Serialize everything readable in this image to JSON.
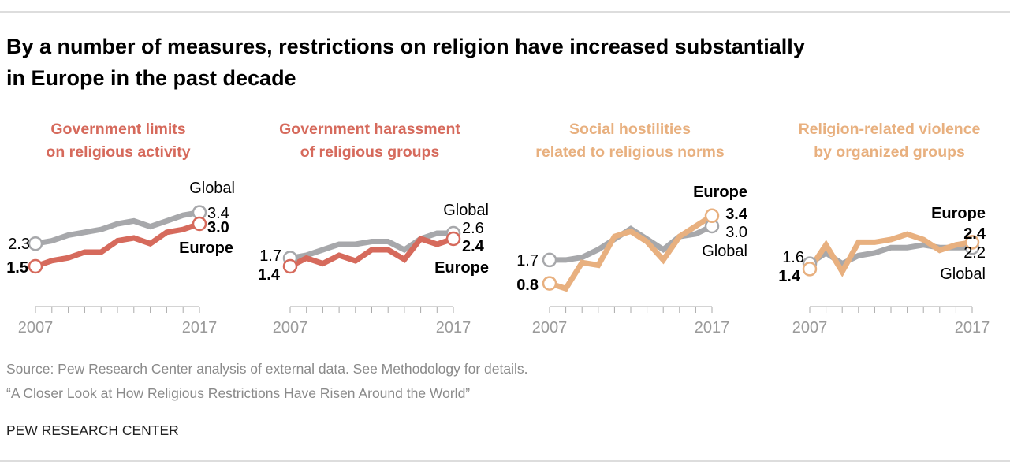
{
  "title_line1": "By a number of measures, restrictions on religion have increased substantially",
  "title_line2": "in Europe in the past decade",
  "source_line1": "Source: Pew Research Center analysis of external data. See Methodology for details.",
  "source_line2": "“A Closer Look at How Religious Restrictions Have Risen Around the World”",
  "brand": "PEW RESEARCH CENTER",
  "colors": {
    "global": "#a7a8ab",
    "red": "#d66a5c",
    "orange": "#e8b07f"
  },
  "chart_data": [
    {
      "type": "line",
      "title_lines": [
        "Government limits",
        "on religious activity"
      ],
      "title_color": "#d66a5c",
      "x": [
        2007,
        2008,
        2009,
        2010,
        2011,
        2012,
        2013,
        2014,
        2015,
        2016,
        2017
      ],
      "x_tick_labels": [
        "2007",
        "2017"
      ],
      "series": [
        {
          "name": "Global",
          "color": "#a7a8ab",
          "values": [
            2.3,
            2.4,
            2.6,
            2.7,
            2.8,
            3.0,
            3.1,
            2.9,
            3.1,
            3.3,
            3.4
          ],
          "start_label": "2.3",
          "end_label": "3.4"
        },
        {
          "name": "Europe",
          "color": "#d66a5c",
          "values": [
            1.5,
            1.7,
            1.8,
            2.0,
            2.0,
            2.4,
            2.5,
            2.3,
            2.7,
            2.8,
            3.0
          ],
          "start_label": "1.5",
          "end_label": "3.0"
        }
      ]
    },
    {
      "type": "line",
      "title_lines": [
        "Government harassment",
        "of religious groups"
      ],
      "title_color": "#d66a5c",
      "x": [
        2007,
        2008,
        2009,
        2010,
        2011,
        2012,
        2013,
        2014,
        2015,
        2016,
        2017
      ],
      "x_tick_labels": [
        "2007",
        "2017"
      ],
      "series": [
        {
          "name": "Global",
          "color": "#a7a8ab",
          "values": [
            1.7,
            1.8,
            2.0,
            2.2,
            2.2,
            2.3,
            2.3,
            2.0,
            2.4,
            2.6,
            2.6
          ],
          "start_label": "1.7",
          "end_label": "2.6"
        },
        {
          "name": "Europe",
          "color": "#d66a5c",
          "values": [
            1.4,
            1.7,
            1.5,
            1.8,
            1.6,
            2.0,
            2.0,
            1.65,
            2.4,
            2.2,
            2.4
          ],
          "start_label": "1.4",
          "end_label": "2.4"
        }
      ]
    },
    {
      "type": "line",
      "title_lines": [
        "Social hostilities",
        "related to religious norms"
      ],
      "title_color": "#e8b07f",
      "x": [
        2007,
        2008,
        2009,
        2010,
        2011,
        2012,
        2013,
        2014,
        2015,
        2016,
        2017
      ],
      "x_tick_labels": [
        "2007",
        "2017"
      ],
      "series": [
        {
          "name": "Global",
          "color": "#a7a8ab",
          "values": [
            1.7,
            1.7,
            1.8,
            2.1,
            2.5,
            2.9,
            2.5,
            2.1,
            2.6,
            2.7,
            3.0
          ],
          "start_label": "1.7",
          "end_label": "3.0"
        },
        {
          "name": "Europe",
          "color": "#e8b07f",
          "values": [
            0.8,
            0.6,
            1.6,
            1.5,
            2.6,
            2.8,
            2.4,
            1.7,
            2.6,
            3.0,
            3.4
          ],
          "start_label": "0.8",
          "end_label": "3.4"
        }
      ]
    },
    {
      "type": "line",
      "title_lines": [
        "Religion-related violence",
        "by organized groups"
      ],
      "title_color": "#e8b07f",
      "x": [
        2007,
        2008,
        2009,
        2010,
        2011,
        2012,
        2013,
        2014,
        2015,
        2016,
        2017
      ],
      "x_tick_labels": [
        "2007",
        "2017"
      ],
      "series": [
        {
          "name": "Global",
          "color": "#a7a8ab",
          "values": [
            1.6,
            2.0,
            1.6,
            1.9,
            2.0,
            2.2,
            2.2,
            2.3,
            2.2,
            2.2,
            2.2
          ],
          "start_label": "1.6",
          "end_label": "2.2"
        },
        {
          "name": "Europe",
          "color": "#e8b07f",
          "values": [
            1.4,
            2.3,
            1.3,
            2.4,
            2.4,
            2.5,
            2.7,
            2.5,
            2.1,
            2.3,
            2.4
          ],
          "start_label": "1.4",
          "end_label": "2.4"
        }
      ]
    }
  ]
}
